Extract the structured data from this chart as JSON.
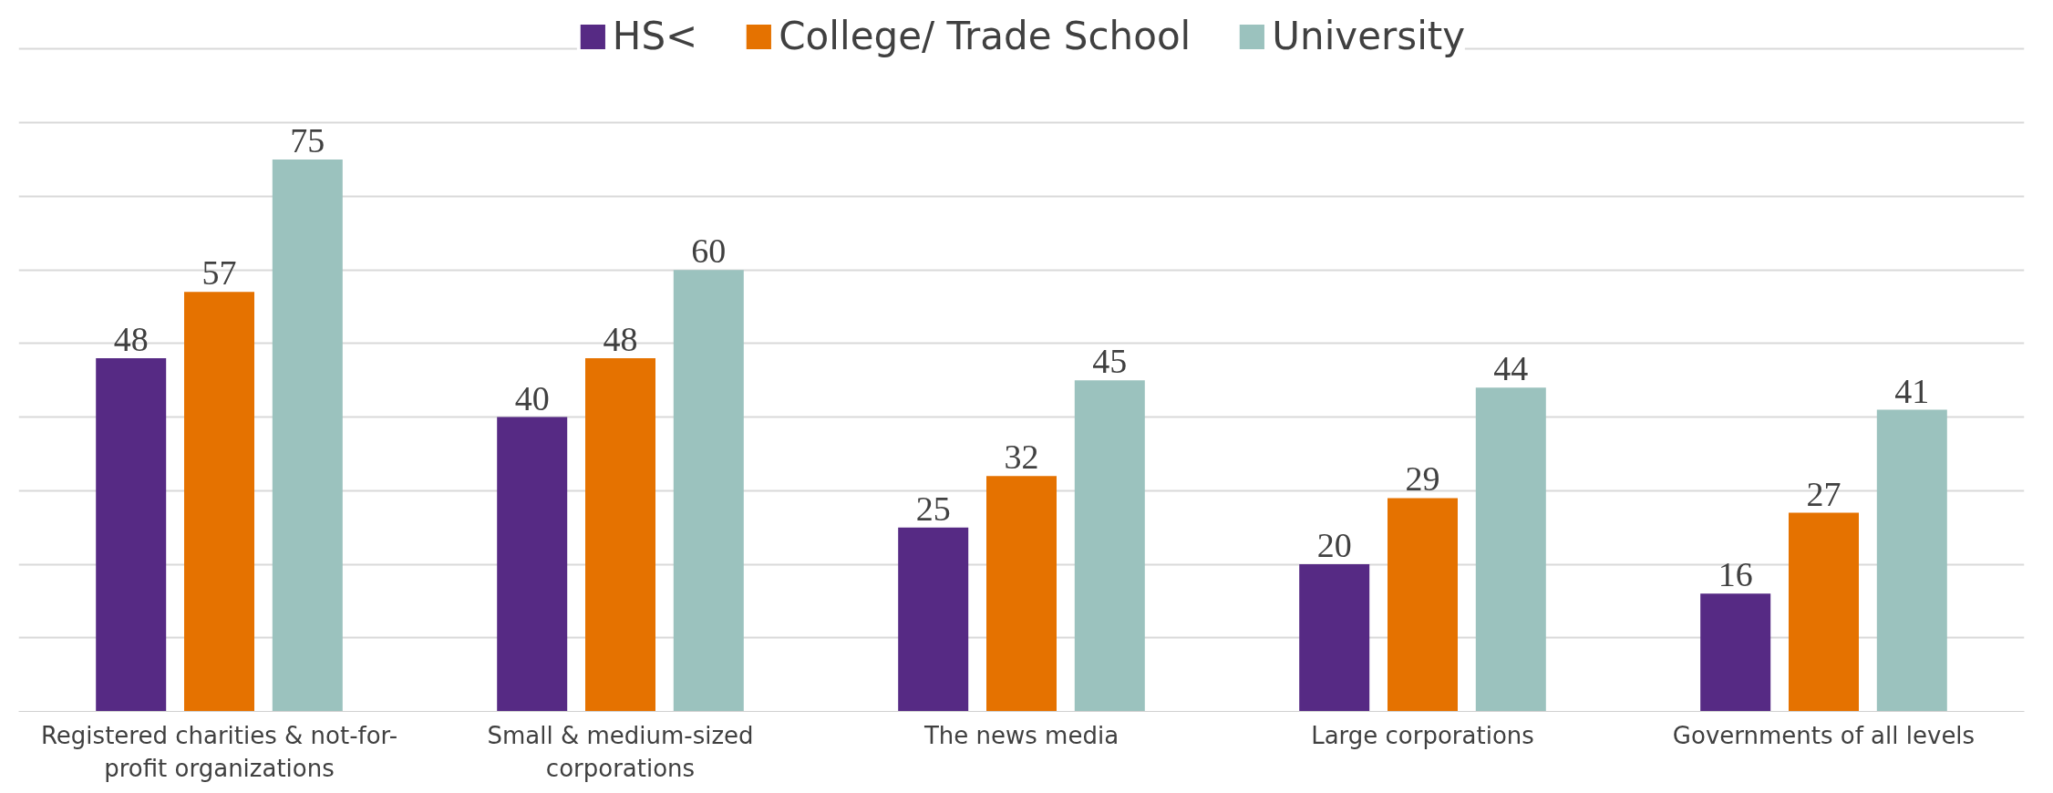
{
  "chart_data": {
    "type": "bar",
    "categories": [
      "Registered charities & not-for-profit organizations",
      "Small & medium-sized corporations",
      "The news media",
      "Large corporations",
      "Governments of all levels"
    ],
    "series": [
      {
        "name": "HS<",
        "color": "#562a84",
        "values": [
          48,
          40,
          25,
          20,
          16
        ]
      },
      {
        "name": "College/ Trade School",
        "color": "#e57200",
        "values": [
          57,
          48,
          32,
          29,
          27
        ]
      },
      {
        "name": "University",
        "color": "#9bc2be",
        "values": [
          75,
          60,
          45,
          44,
          41
        ]
      }
    ],
    "tick_labels": "x",
    "grid": "y",
    "legend": "top",
    "data_labels": true
  }
}
